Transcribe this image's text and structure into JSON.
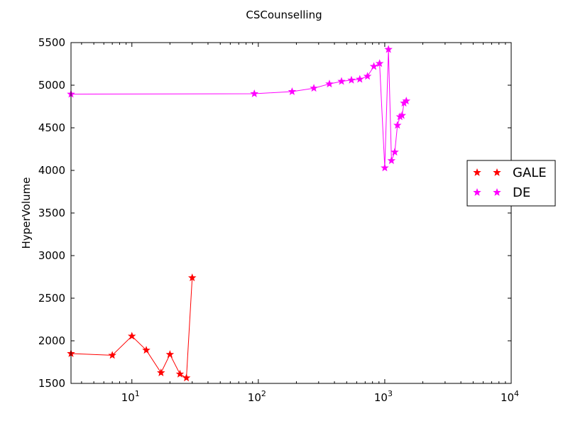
{
  "chart_data": {
    "type": "line",
    "title": "CSCounselling",
    "xlabel": "",
    "ylabel": "HyperVolume",
    "x_scale": "log",
    "xlim": [
      3.3,
      10000
    ],
    "ylim": [
      1500,
      5500
    ],
    "x_ticks": [
      {
        "value": 10,
        "base": "10",
        "exp": "1"
      },
      {
        "value": 100,
        "base": "10",
        "exp": "2"
      },
      {
        "value": 1000,
        "base": "10",
        "exp": "3"
      },
      {
        "value": 10000,
        "base": "10",
        "exp": "4"
      }
    ],
    "y_ticks": [
      1500,
      2000,
      2500,
      3000,
      3500,
      4000,
      4500,
      5000,
      5500
    ],
    "grid": false,
    "legend": {
      "placement": "right",
      "entries": [
        "GALE",
        "DE"
      ]
    },
    "series": [
      {
        "name": "GALE",
        "color": "#ff0000",
        "marker": "star",
        "x": [
          3.3,
          7,
          10,
          13,
          17,
          20,
          24,
          27,
          30
        ],
        "y": [
          1850,
          1830,
          2055,
          1890,
          1625,
          1840,
          1610,
          1565,
          2740
        ]
      },
      {
        "name": "DE",
        "color": "#ff00ff",
        "marker": "star",
        "x": [
          3.3,
          93,
          185,
          275,
          365,
          455,
          545,
          635,
          730,
          820,
          910,
          1000,
          1070,
          1130,
          1200,
          1260,
          1320,
          1370,
          1420,
          1480
        ],
        "y": [
          4895,
          4900,
          4925,
          4965,
          5015,
          5045,
          5060,
          5070,
          5105,
          5220,
          5255,
          4030,
          5420,
          4115,
          4215,
          4530,
          4630,
          4645,
          4790,
          4815
        ]
      }
    ]
  }
}
